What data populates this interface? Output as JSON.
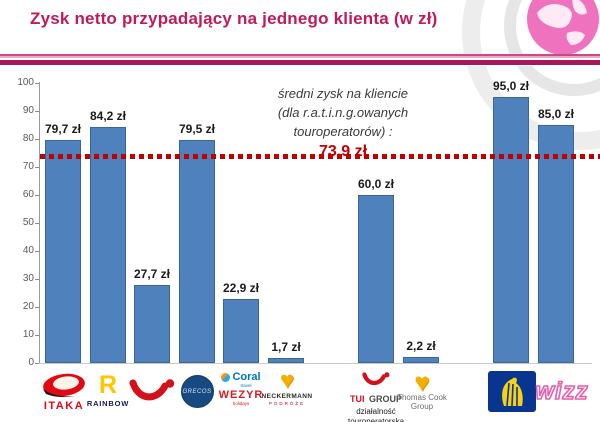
{
  "header": {
    "title": "Zysk netto przypadający na jednego klienta (w zł)"
  },
  "chart_data": {
    "type": "bar",
    "title": "Zysk netto przypadający na jednego klienta (w zł)",
    "categories": [
      "Itaka",
      "Rainbow",
      "TUI",
      "Grecos",
      "Coral Travel Wezyr",
      "Neckermann Podróże",
      "TUI Group (działalność touroperatorska)",
      "Thomas Cook Group",
      "Ryanair",
      "Wizz Air"
    ],
    "values": [
      79.7,
      84.2,
      27.7,
      79.5,
      22.9,
      1.7,
      60.0,
      2.2,
      95.0,
      85.0
    ],
    "bar_labels": [
      "79,7 zł",
      "84,2 zł",
      "27,7 zł",
      "79,5 zł",
      "22,9 zł",
      "1,7 zł",
      "60,0 zł",
      "2,2 zł",
      "95,0 zł",
      "85,0 zł"
    ],
    "ylim": [
      0,
      100
    ],
    "yticks": [
      0,
      10,
      20,
      30,
      40,
      50,
      60,
      70,
      80,
      90,
      100
    ],
    "grid": false,
    "legend": false,
    "bar_color": "#4F81BD",
    "bar_border_color": "#3A6599",
    "reference_line": {
      "value": 73.9,
      "color": "#C00000",
      "style": "dashed",
      "annotation_lines": [
        "średni zysk na kliencie",
        "(dla r.a.t.i.n.g.owanych",
        "touroperatorów) :"
      ],
      "value_label": "73,9 zł"
    }
  },
  "logos": {
    "itaka": {
      "label": "ITAKA"
    },
    "rainbow": {
      "letter": "R",
      "label": "RAINBOW"
    },
    "grecos": {
      "label": "GRECOS"
    },
    "coral": {
      "brand": "Coral",
      "brand_sub": "travel",
      "label2": "WEZYR",
      "label2_sub": "holidays"
    },
    "neckermann": {
      "heart": "♥",
      "label": "NECKERMANN",
      "sub": "PODRÓŻE"
    },
    "tui_group": {
      "brand": "TUI",
      "brand2": "GROUP",
      "sub1": "działalność",
      "sub2": "touroperatorska"
    },
    "thomas_cook": {
      "heart": "♥",
      "line1": "Thomas Cook",
      "line2": "Group"
    },
    "wizz": {
      "label": "wizz"
    }
  }
}
